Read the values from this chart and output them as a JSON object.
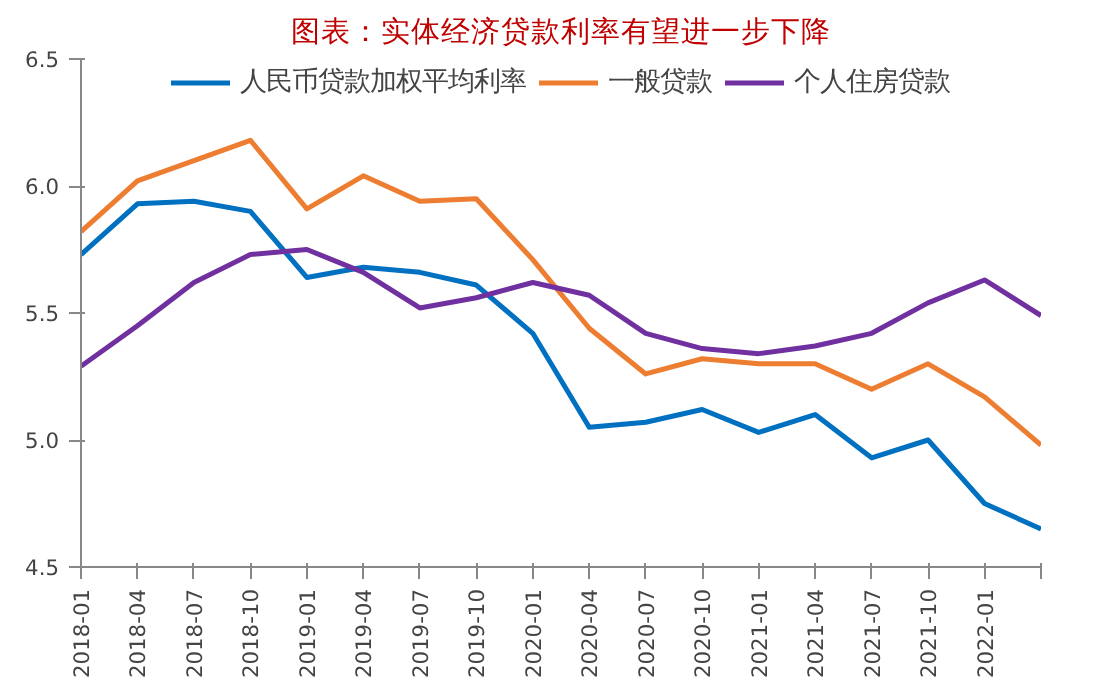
{
  "chart_data": {
    "type": "line",
    "title": "图表：实体经济贷款利率有望进一步下降",
    "categories": [
      "2018-01",
      "2018-04",
      "2018-07",
      "2018-10",
      "2019-01",
      "2019-04",
      "2019-07",
      "2019-10",
      "2020-01",
      "2020-04",
      "2020-07",
      "2020-10",
      "2021-01",
      "2021-04",
      "2021-07",
      "2021-10",
      "2022-01",
      null
    ],
    "series": [
      {
        "name": "人民币贷款加权平均利率",
        "color": "#0070c0",
        "values": [
          5.73,
          5.93,
          5.94,
          5.9,
          5.64,
          5.68,
          5.66,
          5.61,
          5.42,
          5.05,
          5.07,
          5.12,
          5.03,
          5.1,
          4.93,
          5.0,
          4.75,
          4.65
        ]
      },
      {
        "name": "一般贷款",
        "color": "#ed7d31",
        "values": [
          5.82,
          6.02,
          6.1,
          6.18,
          5.91,
          6.04,
          5.94,
          5.95,
          5.71,
          5.44,
          5.26,
          5.32,
          5.3,
          5.3,
          5.2,
          5.3,
          5.17,
          4.98
        ]
      },
      {
        "name": "个人住房贷款",
        "color": "#7030a0",
        "values": [
          5.29,
          5.45,
          5.62,
          5.73,
          5.75,
          5.66,
          5.52,
          5.56,
          5.62,
          5.57,
          5.42,
          5.36,
          5.34,
          5.37,
          5.42,
          5.54,
          5.63,
          5.49
        ]
      }
    ],
    "ylim": [
      4.5,
      6.5
    ],
    "yticks": [
      {
        "value": 4.5,
        "label": "4.5"
      },
      {
        "value": 5.0,
        "label": "5.0"
      },
      {
        "value": 5.5,
        "label": "5.5"
      },
      {
        "value": 6.0,
        "label": "6.0"
      },
      {
        "value": 6.5,
        "label": "6.5"
      }
    ],
    "grid": false,
    "legend": "top",
    "line_style": "solid"
  }
}
